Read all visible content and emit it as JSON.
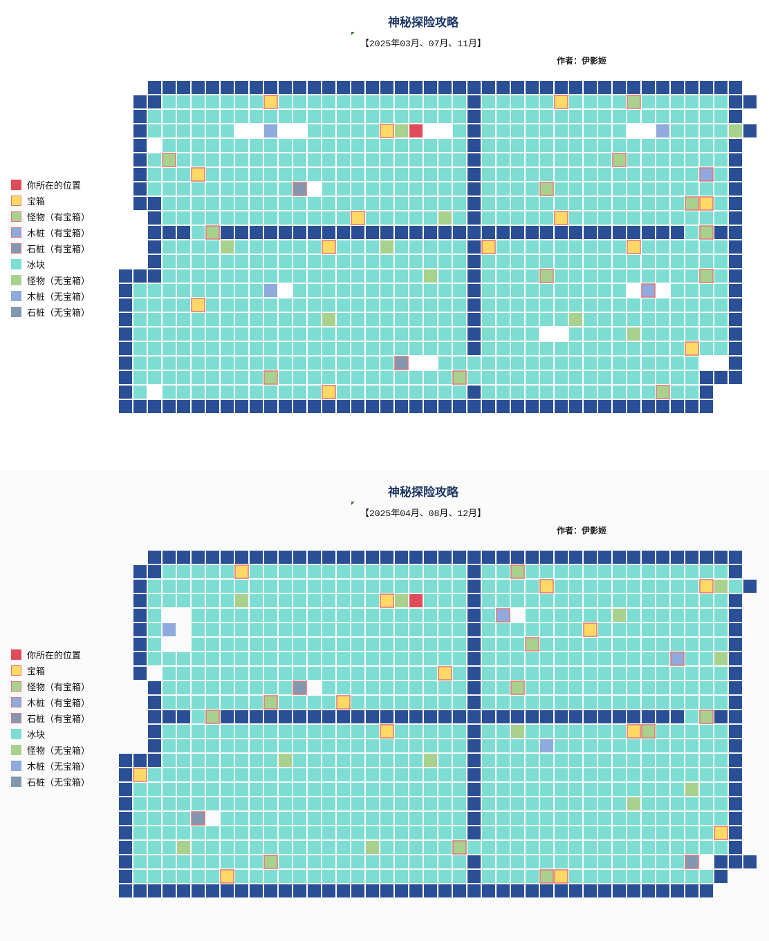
{
  "colors": {
    "wall": "#2b4f96",
    "ice": "#7dddd2",
    "open": "#ffffff",
    "you": "#e04b5a",
    "chest": "#ffd966",
    "monster": "#a9d18e",
    "wood": "#8faadc",
    "stone": "#8497b0",
    "treasure_border": "#e57373"
  },
  "legend": [
    {
      "icon": "you",
      "label": "你所在的位置"
    },
    {
      "icon": "chest",
      "label": "宝箱"
    },
    {
      "icon": "monster-chest",
      "label": "怪物（有宝箱）"
    },
    {
      "icon": "wood-chest",
      "label": "木桩（有宝箱）"
    },
    {
      "icon": "stone-chest",
      "label": "石桩（有宝箱）"
    },
    {
      "icon": "ice",
      "label": "冰块"
    },
    {
      "icon": "monster",
      "label": "怪物（无宝箱）"
    },
    {
      "icon": "wood",
      "label": "木桩（无宝箱）"
    },
    {
      "icon": "stone",
      "label": "石桩（无宝箱）"
    }
  ],
  "maps": [
    {
      "title": "神秘探险攻略",
      "subtitle": "【2025年03月、07月、11月】",
      "author": "作者：伊影姬",
      "rows": [
        "__WWWWWWWWWWWWWWWWWWWWWWWWWWWWWWWWWWWWWWWWW",
        "_WWIIIIIIIPIIIIIIIIIIIIIWIIIIIPIIIIXIIIIIIWW",
        "_WIIIIIIIIIIIIIIIIIIIIIIWIIIIIIIIIIIIIIIIIW",
        "_WIIIIII..D..IIIIIPMY..IWIIIIIIIIII..DIIIIMW",
        "_W.IIIIIIIIIIIIIIIIIIIIIWIIIIIIIIIIIIIIIIIW",
        "_WIXIIIIIIIIIIIIIIIIIIIIWIIIIIIIIIXIIIIIIIW",
        "_WIIIPIIIIIIIIIIIIIIIIIIWIIIIIIIIIIIIIIIEIW",
        "_WIIIIIIIIIIS.IIIIIIIIIIWIIIIXIIIIIIIIIIIIW",
        "_WWIIIIIIIIIIIIIIIIIIIIIWIIIIIIIIIIIIIIXPIW",
        "__WIIIIIIIIIIIIIPIIIIIMIWIIIIIPIIIIIIIIIIIW",
        "__WWWIXWWWWWWWWWWWWWWWWWWWWWWWWWWWWWWWWIXWW",
        "__WIIIIMIIIIIIPIIIMIIIIIWPIIIIIIIIIPIIIIIIW",
        "__WIIIIIIIIIIIIIIIIIIIIIWIIIIIIIIIIIIIIIIIW",
        "WWWIIIIIIIIIIIIIIIIIIMIIWIIIIXIIIIIIIIIIXIW",
        "WIIIIIIIIID.IIIIIIIIIIIIWIIIIIIIIII.E.IIIIW",
        "WIIIIPIIIIIIIIIIIIIIIIIIWIIIIIIIIIIIIIIIIIW",
        "WIIIIIIIIIIIIIMIIIIIIIIIWIIIIIIMIIIIIIIIIIW",
        "WIIIIIIIIIIIIIIIIIIIIIIIWIIII..IIIIMIIIIIIW",
        "WIIIIIIIIIIIIIIIIIIIIIIIWIIIIIIIIIIIIIIPIIW",
        "WIIIIIIIIIIIIIIIIIIS..IIIIIIIIIIIIIIIIII..W",
        "WIIIIIIIIIXIIIIIIIIIIIIXIIIIIIIIIIIIIIIIWWW",
        "WI.IIIIIIIIIIIPIIIIIIIIIWIIIIIIIIIIIIXIIW__",
        "WWWWWWWWWWWWWWWWWWWWWWWWWWWWWWWWWWWWWWWWW__"
      ]
    },
    {
      "title": "神秘探险攻略",
      "subtitle": "【2025年04月、08月、12月】",
      "author": "作者：伊影姬",
      "rows": [
        "__WWWWWWWWWWWWWWWWWWWWWWWWWWWWWWWWWWWWWWWWW",
        "_WWIIIIIPIIIIIIIIIIIIIIIWIIXIIIIIIIIIIIIIIW",
        "_WIIIIIIIIIIIIIIIIIIIIIIWIIIIPIIIIIIIIIIPMIW",
        "_WIIIIIIMIIIIIIIIIPMYIIIWIIIIIIIIIIIIIIIIIW",
        "_WI..IIIIIIIIIIIIIIIIIIIWIE.IIIIIIMIIIIIIIW",
        "_WID.IIIIIIIIIIIIIIIIIIIWIIIIIIIPIIIIIIIIIW",
        "_WI..IIIIIIIIIIIIIIIIIIIWIIIXIIIIIIIIIIIIIW",
        "_WIIIIIIIIIIIIIIIIIIIIIIWIIIIIIIIIIIIIEIIMW",
        "_W.IIIIIIIIIIIIIIIIIIIPIWIIIIIIIIIIIIIIIIIW",
        "__WIIIIIIIIIS.IIIIIIIIIIWIIXIIIIIIIIIIIIIIW",
        "__WIIIIIIIXIIIIPIIIIIIIIWIIIIIIIIIIIIIIIIIW",
        "__WWWIXWWWWWWWWWWWWWWWWWWWWWWWWWWWWWWWWIXWW",
        "__WIIIIIIIIIIIIIIIPIIIIIWIIMIIIIIIIPXIIIIIW",
        "__WIIIIIIIIIIIIIIIIIIIIIWIIIIDIIIIIIIIIIIIW",
        "WWWIIIIIIIIMIIIIIIIIIMIIWIIIIIIIIIIIIIIIIIW",
        "WPIIIIIIIIIIIIIIIIIIIIIIWIIIIIIIIIIIIIIIIIW",
        "WIIIIIIIIIIIIIIIIIIIIIIIWIIIIIIIIIIIIIIMIIW",
        "WIIIIIIIIIIIIIIIIIIIIIIIWIIIIIIIIIIMIIIIIIW",
        "WIIIIS.IIIIIIIIIIIIIIIIIWIIIIIIIIIIIIIIIIIW",
        "WIIIIIIIIIIIIIIIIIIIIIIIWIIIIIIIIIIIIIIIIPW",
        "WIIIMIIIIIIIIIIIIMIIIIIXIIIIIIIIIIIIIIIIIIW",
        "WIIIIIIIIIXIIIIIIIIIIIIIWIIIIIIIIIIIIIIS.WWW",
        "WIIIIIIPIIIIIIIIIIIIIIIIWIIIIXPIIIIIIIIIIW__",
        "WWWWWWWWWWWWWWWWWWWWWWWWWWWWWWWWWWWWWWWWW__"
      ]
    }
  ]
}
